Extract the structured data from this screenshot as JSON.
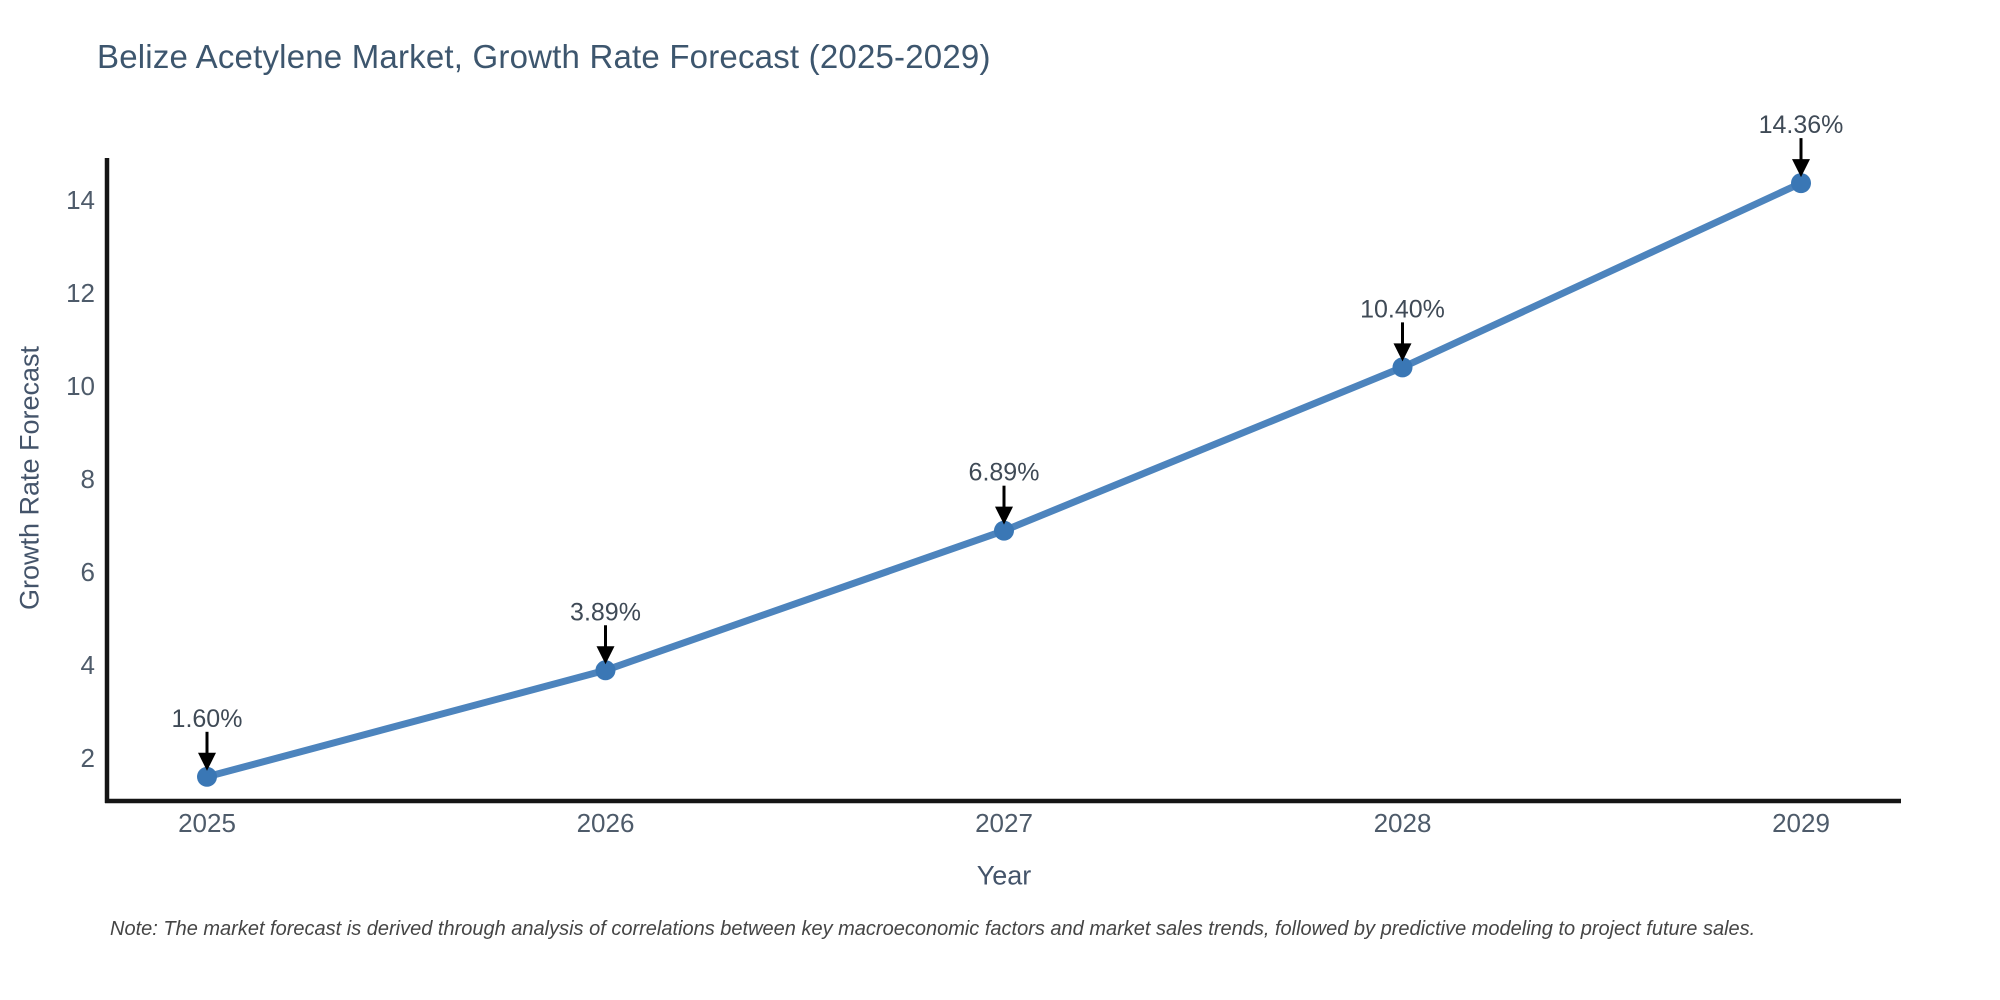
{
  "chart_data": {
    "type": "line",
    "title": "Belize Acetylene Market, Growth Rate Forecast (2025-2029)",
    "xlabel": "Year",
    "ylabel": "Growth Rate Forecast",
    "note": "Note: The market forecast is derived through analysis of correlations between key macroeconomic factors and market sales trends, followed by predictive modeling to project future sales.",
    "categories": [
      "2025",
      "2026",
      "2027",
      "2028",
      "2029"
    ],
    "values": [
      1.6,
      3.89,
      6.89,
      10.4,
      14.36
    ],
    "point_labels": [
      "1.60%",
      "3.89%",
      "6.89%",
      "10.40%",
      "14.36%"
    ],
    "yticks": [
      2,
      4,
      6,
      8,
      10,
      12,
      14
    ],
    "ylim": [
      1.08,
      14.9
    ],
    "grid": false,
    "legend_position": "none",
    "marker_shape": "circle",
    "annotation_arrows": true,
    "colors": {
      "line": "#4d84bd",
      "marker": "#3a77b5",
      "axis": "#151515",
      "title_text": "#3d566e",
      "axis_label_text": "#44546a",
      "tick_text": "#4e5b6a",
      "annotation_text": "#3f4a56",
      "arrow": "#000000",
      "note_text": "#454545",
      "background": "#ffffff"
    }
  }
}
